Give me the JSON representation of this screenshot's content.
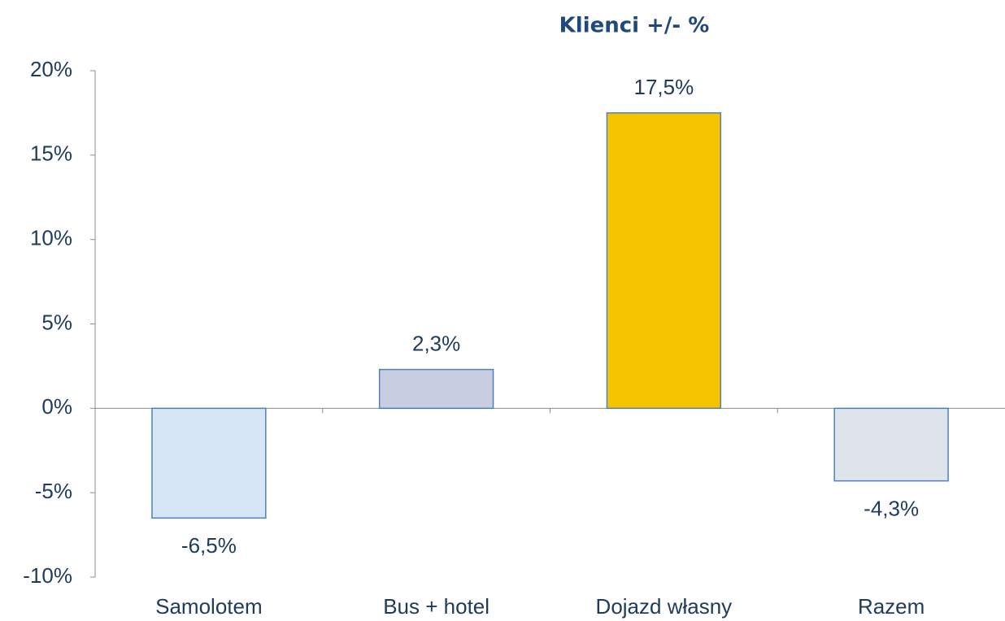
{
  "chart_data": {
    "type": "bar",
    "title": "Klienci +/- %",
    "categories": [
      "Samolotem",
      "Bus + hotel",
      "Dojazd własny",
      "Razem"
    ],
    "values": [
      -6.5,
      2.3,
      17.5,
      -4.3
    ],
    "value_labels": [
      "-6,5%",
      "2,3%",
      "17,5%",
      "-4,3%"
    ],
    "colors": [
      "#d6e6f7",
      "#c9cde0",
      "#f5c400",
      "#dfe4ea"
    ],
    "ylim": [
      -10,
      20
    ],
    "yticks": [
      {
        "value": -10,
        "label": "-10%"
      },
      {
        "value": -5,
        "label": "-5%"
      },
      {
        "value": 0,
        "label": "0%"
      },
      {
        "value": 5,
        "label": "5%"
      },
      {
        "value": 10,
        "label": "10%"
      },
      {
        "value": 15,
        "label": "15%"
      },
      {
        "value": 20,
        "label": "20%"
      }
    ]
  }
}
